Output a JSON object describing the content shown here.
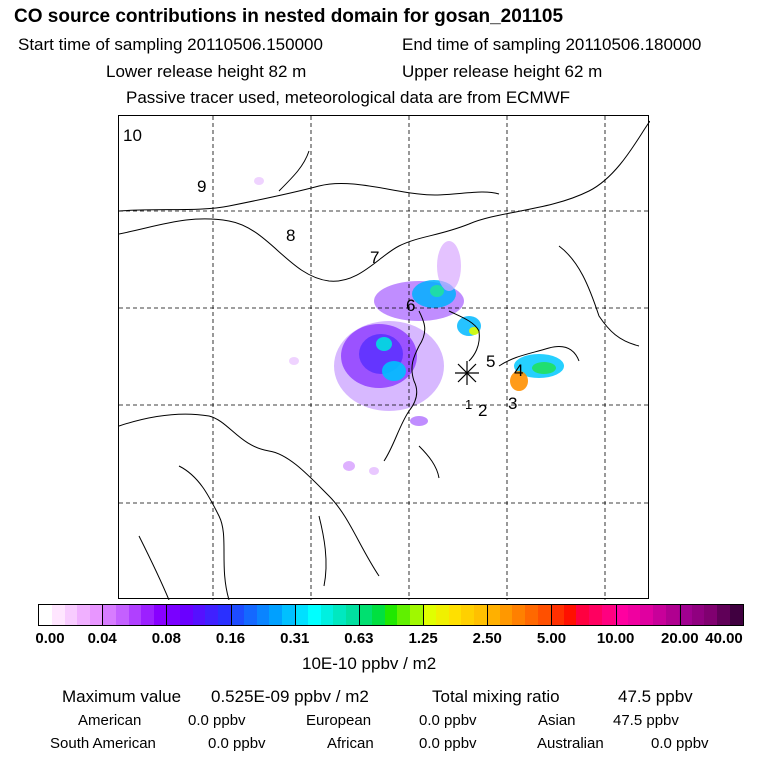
{
  "header": {
    "title": "CO  source contributions in nested domain for gosan_201105",
    "start_label": "Start time of sampling 20110506.150000",
    "end_label": "End time of sampling 20110506.180000",
    "lower_label": "Lower release height   82 m",
    "upper_label": "Upper release height   62 m",
    "tracer_note": "Passive tracer used, meteorological data are from ECMWF"
  },
  "map": {
    "receptor_marker": "asterisk-icon",
    "trajectory_labels": [
      "1",
      "2",
      "3",
      "4",
      "5",
      "6",
      "7",
      "8",
      "9",
      "10"
    ]
  },
  "colorbar": {
    "ticks": [
      "0.00",
      "0.04",
      "0.08",
      "0.16",
      "0.31",
      "0.63",
      "1.25",
      "2.50",
      "5.00",
      "10.00",
      "20.00",
      "40.00"
    ],
    "unit_label": "10E-10 ppbv / m2",
    "colors": [
      [
        "#ffffff",
        "#ffe6ff",
        "#f8ccff",
        "#f0b0ff",
        "#e896ff"
      ],
      [
        "#d77cff",
        "#c460ff",
        "#b040ff",
        "#9c20ff",
        "#8800ff"
      ],
      [
        "#7a00ff",
        "#6a00ff",
        "#5510ff",
        "#4020ff",
        "#2a30ff"
      ],
      [
        "#1e4cff",
        "#1468ff",
        "#0a84ff",
        "#00a0ff",
        "#00c0ff"
      ],
      [
        "#00e0ff",
        "#00ffff",
        "#00f0e0",
        "#00e8c0",
        "#00e0a0"
      ],
      [
        "#00e070",
        "#00e040",
        "#20e800",
        "#60f000",
        "#a0f800"
      ],
      [
        "#e0ff00",
        "#f0f000",
        "#ffe000",
        "#ffd000",
        "#ffc000"
      ],
      [
        "#ffb000",
        "#ff9800",
        "#ff8000",
        "#ff6800",
        "#ff5000"
      ],
      [
        "#ff3000",
        "#ff1000",
        "#ff0040",
        "#ff0060",
        "#ff0080"
      ],
      [
        "#ff00a0",
        "#f000a0",
        "#e000a0",
        "#c8009a",
        "#b00090"
      ],
      [
        "#a00090",
        "#900080",
        "#800070",
        "#600058",
        "#400040"
      ]
    ]
  },
  "stats": {
    "max_label": "Maximum value",
    "max_value": "0.525E-09 ppbv / m2",
    "total_label": "Total mixing ratio",
    "total_value": "47.5 ppbv",
    "regions": [
      {
        "name": "American",
        "value": "0.0 ppbv"
      },
      {
        "name": "European",
        "value": "0.0 ppbv"
      },
      {
        "name": "Asian",
        "value": "47.5 ppbv"
      },
      {
        "name": "South American",
        "value": "0.0 ppbv"
      },
      {
        "name": "African",
        "value": "0.0 ppbv"
      },
      {
        "name": "Australian",
        "value": "0.0 ppbv"
      }
    ]
  }
}
